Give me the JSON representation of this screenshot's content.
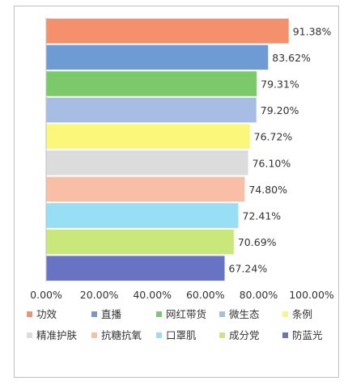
{
  "chart_data": {
    "type": "bar",
    "orientation": "horizontal",
    "title": "",
    "xlabel": "",
    "ylabel": "",
    "xlim": [
      0,
      100
    ],
    "x_ticks": [
      "0.00%",
      "20.00%",
      "40.00%",
      "60.00%",
      "80.00%",
      "100.00%"
    ],
    "grid": false,
    "legend_position": "bottom",
    "categories": [
      "功效",
      "直播",
      "网红带货",
      "微生态",
      "条例",
      "精准护肤",
      "抗糖抗氧",
      "口罩肌",
      "成分党",
      "防蓝光"
    ],
    "values": [
      91.38,
      83.62,
      79.31,
      79.2,
      76.72,
      76.1,
      74.8,
      72.41,
      70.69,
      67.24
    ],
    "data_labels": [
      "91.38%",
      "83.62%",
      "79.31%",
      "79.20%",
      "76.72%",
      "76.10%",
      "74.80%",
      "72.41%",
      "70.69%",
      "67.24%"
    ],
    "colors": [
      "#f4906c",
      "#6f9bd5",
      "#7cc96b",
      "#a8bde3",
      "#fbf77a",
      "#dcdcdc",
      "#f9bfa6",
      "#98def5",
      "#c9e77a",
      "#6873c4"
    ]
  }
}
